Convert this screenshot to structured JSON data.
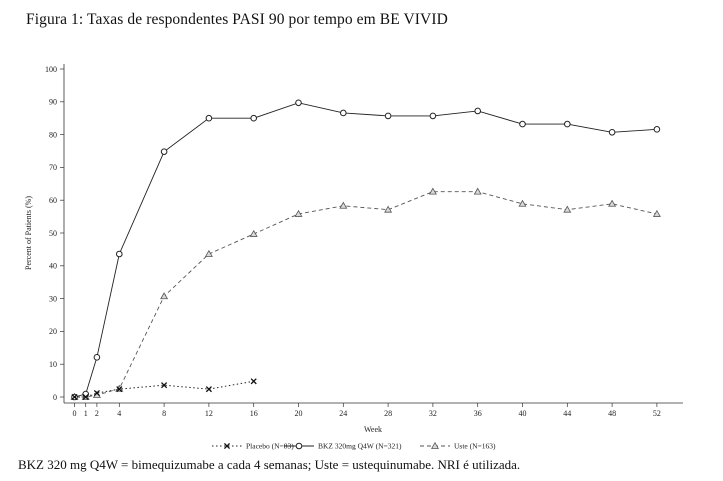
{
  "figure": {
    "title": "Figura 1: Taxas de respondentes PASI 90 por tempo em BE VIVID",
    "footnote": "BKZ 320 mg Q4W = bimequizumabe a cada 4 semanas; Uste = ustequinumabe. NRI é utilizada."
  },
  "chart_data": {
    "type": "line",
    "xlabel": "Week",
    "ylabel": "Percent of Patients (%)",
    "xlim": [
      -1,
      54
    ],
    "ylim": [
      0,
      100
    ],
    "x_ticks": [
      0,
      1,
      2,
      4,
      8,
      12,
      16,
      20,
      24,
      28,
      32,
      36,
      40,
      44,
      48,
      52
    ],
    "y_ticks": [
      0,
      10,
      20,
      30,
      40,
      50,
      60,
      70,
      80,
      90,
      100
    ],
    "grid": false,
    "legend_position": "bottom",
    "series": [
      {
        "name": "Placebo (N=83)",
        "marker": "x",
        "line_style": "dotted",
        "color": "#222222",
        "x": [
          0,
          1,
          2,
          4,
          8,
          12,
          16
        ],
        "y": [
          0,
          0,
          1.2,
          2.4,
          3.6,
          2.4,
          4.8
        ]
      },
      {
        "name": "BKZ 320mg Q4W (N=321)",
        "marker": "circle",
        "line_style": "solid",
        "color": "#222222",
        "x": [
          0,
          1,
          2,
          4,
          8,
          12,
          16,
          20,
          24,
          28,
          32,
          36,
          40,
          44,
          48,
          52
        ],
        "y": [
          0,
          0.9,
          12.1,
          43.6,
          74.8,
          85.0,
          85.0,
          89.7,
          86.6,
          85.7,
          85.7,
          87.2,
          83.2,
          83.2,
          80.7,
          81.6
        ]
      },
      {
        "name": "Uste (N=163)",
        "marker": "triangle",
        "line_style": "dashed",
        "color": "#222222",
        "x": [
          0,
          1,
          2,
          4,
          8,
          12,
          16,
          20,
          24,
          28,
          32,
          36,
          40,
          44,
          48,
          52
        ],
        "y": [
          0,
          0,
          0.6,
          2.5,
          30.7,
          43.6,
          49.7,
          55.8,
          58.3,
          57.1,
          62.6,
          62.6,
          58.9,
          57.1,
          58.9,
          55.8
        ]
      }
    ]
  }
}
